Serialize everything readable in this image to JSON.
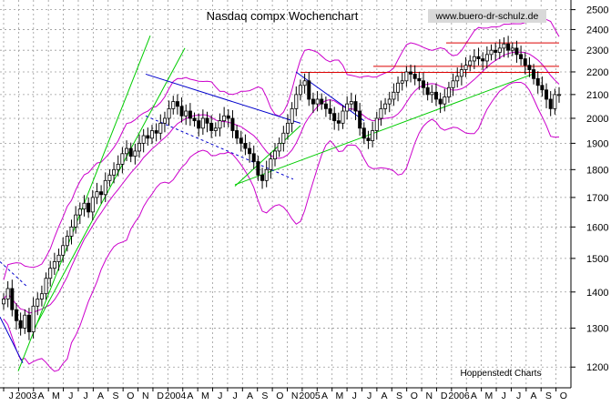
{
  "chart_data": {
    "type": "candlestick",
    "title": "Nasdaq compx Wochenchart",
    "watermark": "www.buero-dr-schulz.de",
    "source": "Hoppenstedt Charts",
    "scale": "log",
    "ylim": [
      1150,
      2550
    ],
    "yticks": [
      2500,
      2400,
      2300,
      2200,
      2100,
      2000,
      1900,
      1800,
      1700,
      1600,
      1500,
      1400,
      1300,
      1200
    ],
    "xlabels": [
      "J",
      "2003",
      "A",
      "M",
      "J",
      "J",
      "A",
      "S",
      "O",
      "N",
      "D",
      "2004",
      "A",
      "M",
      "J",
      "J",
      "A",
      "S",
      "O",
      "N",
      "2005",
      "A",
      "M",
      "J",
      "J",
      "A",
      "S",
      "O",
      "N",
      "D",
      "2006",
      "A",
      "M",
      "J",
      "J",
      "A",
      "S",
      "O"
    ],
    "grid": true,
    "colors": {
      "candle_up": "#ffffff",
      "candle_down": "#000000",
      "bollinger": "#cc00cc",
      "trend_green": "#00cc00",
      "trend_blue": "#0000cc",
      "resistance_red": "#dd0000"
    },
    "weekly_close": [
      1380,
      1410,
      1350,
      1320,
      1300,
      1335,
      1290,
      1360,
      1380,
      1395,
      1440,
      1470,
      1490,
      1510,
      1540,
      1570,
      1600,
      1640,
      1660,
      1680,
      1650,
      1700,
      1720,
      1710,
      1760,
      1780,
      1800,
      1820,
      1860,
      1880,
      1850,
      1870,
      1900,
      1930,
      1920,
      1950,
      1940,
      1980,
      2000,
      2040,
      2070,
      2050,
      2010,
      2030,
      2000,
      1990,
      1960,
      2000,
      1980,
      1950,
      1960,
      1990,
      2010,
      2000,
      1950,
      1920,
      1900,
      1880,
      1860,
      1830,
      1780,
      1760,
      1800,
      1840,
      1870,
      1900,
      1940,
      1980,
      2040,
      2100,
      2140,
      2160,
      2080,
      2060,
      2080,
      2060,
      2040,
      2020,
      1990,
      1980,
      2030,
      2060,
      2070,
      2030,
      1960,
      1920,
      1910,
      1950,
      2000,
      2040,
      2060,
      2080,
      2110,
      2150,
      2160,
      2200,
      2190,
      2170,
      2160,
      2130,
      2100,
      2110,
      2080,
      2060,
      2090,
      2130,
      2160,
      2180,
      2210,
      2230,
      2250,
      2270,
      2260,
      2250,
      2280,
      2300,
      2290,
      2310,
      2330,
      2300,
      2310,
      2280,
      2260,
      2230,
      2210,
      2170,
      2140,
      2120,
      2080,
      2040,
      2100,
      2100
    ]
  }
}
